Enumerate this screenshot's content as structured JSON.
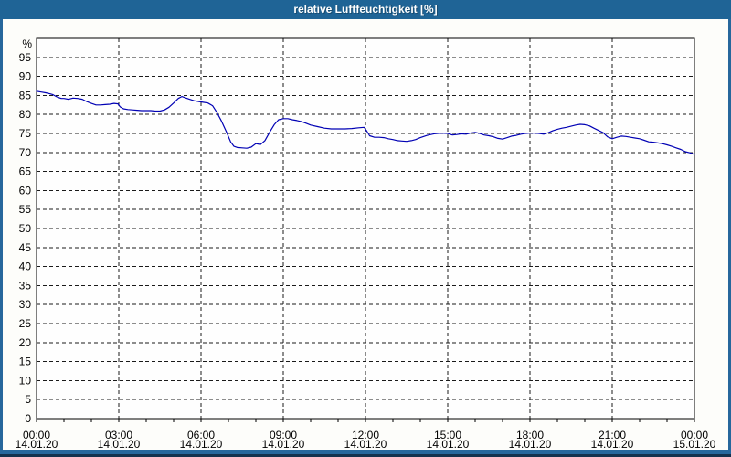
{
  "window": {
    "title": "relative Luftfeuchtigkeit [%]"
  },
  "colors": {
    "titlebar_bg": "#1f6496",
    "titlebar_text": "#ffffff",
    "frame": "#27679c",
    "frame_bottom_edge": "#14324e",
    "background": "#fdfdfa",
    "plot_background": "#fefefe",
    "grid": "#1a1a1a",
    "axis": "#000000",
    "series_line": "#0000b4",
    "tick_label": "#000000"
  },
  "chart_data": {
    "type": "line",
    "title": "relative Luftfeuchtigkeit [%]",
    "y_unit": "%",
    "legend": "none",
    "grid": "dashed",
    "x_axis": {
      "unit": "time",
      "range_hours": [
        0,
        24
      ],
      "minor_tick_every_hours": 1,
      "grid_hours": [
        3,
        6,
        9,
        12,
        15,
        18,
        21
      ],
      "ticks": [
        {
          "hour": 0,
          "time": "00:00",
          "date": "14.01.20"
        },
        {
          "hour": 3,
          "time": "03:00",
          "date": "14.01.20"
        },
        {
          "hour": 6,
          "time": "06:00",
          "date": "14.01.20"
        },
        {
          "hour": 9,
          "time": "09:00",
          "date": "14.01.20"
        },
        {
          "hour": 12,
          "time": "12:00",
          "date": "14.01.20"
        },
        {
          "hour": 15,
          "time": "15:00",
          "date": "14.01.20"
        },
        {
          "hour": 18,
          "time": "18:00",
          "date": "14.01.20"
        },
        {
          "hour": 21,
          "time": "21:00",
          "date": "14.01.20"
        },
        {
          "hour": 24,
          "time": "00:00",
          "date": "15.01.20"
        }
      ]
    },
    "y_axis": {
      "ticks": [
        0,
        5,
        10,
        15,
        20,
        25,
        30,
        35,
        40,
        45,
        50,
        55,
        60,
        65,
        70,
        75,
        80,
        85,
        90,
        95
      ],
      "box_max": 100,
      "ylim": [
        0,
        100
      ]
    },
    "series": [
      {
        "id": "humidity",
        "name": "relative Luftfeuchtigkeit",
        "color": "#0000b4",
        "points": [
          [
            0,
            86.1
          ],
          [
            0.17,
            85.9
          ],
          [
            0.33,
            85.7
          ],
          [
            0.5,
            85.4
          ],
          [
            0.6,
            85.2
          ],
          [
            0.75,
            84.6
          ],
          [
            0.9,
            84.2
          ],
          [
            1,
            84.2
          ],
          [
            1.17,
            84.0
          ],
          [
            1.33,
            84.3
          ],
          [
            1.5,
            84.2
          ],
          [
            1.67,
            84.0
          ],
          [
            1.83,
            83.4
          ],
          [
            2,
            82.9
          ],
          [
            2.17,
            82.5
          ],
          [
            2.33,
            82.5
          ],
          [
            2.5,
            82.6
          ],
          [
            2.67,
            82.7
          ],
          [
            2.83,
            82.9
          ],
          [
            2.97,
            82.8
          ],
          [
            3.05,
            82.0
          ],
          [
            3.17,
            81.5
          ],
          [
            3.33,
            81.3
          ],
          [
            3.5,
            81.2
          ],
          [
            3.67,
            81.1
          ],
          [
            3.83,
            81.0
          ],
          [
            4,
            81.0
          ],
          [
            4.17,
            81.0
          ],
          [
            4.33,
            80.9
          ],
          [
            4.5,
            80.9
          ],
          [
            4.67,
            81.2
          ],
          [
            4.83,
            81.9
          ],
          [
            5,
            83.0
          ],
          [
            5.17,
            84.2
          ],
          [
            5.3,
            84.7
          ],
          [
            5.42,
            84.4
          ],
          [
            5.58,
            84.0
          ],
          [
            5.75,
            83.6
          ],
          [
            5.92,
            83.4
          ],
          [
            6.08,
            83.2
          ],
          [
            6.25,
            83.0
          ],
          [
            6.42,
            82.3
          ],
          [
            6.58,
            80.5
          ],
          [
            6.75,
            78.2
          ],
          [
            6.92,
            75.5
          ],
          [
            7.08,
            72.8
          ],
          [
            7.2,
            71.6
          ],
          [
            7.33,
            71.3
          ],
          [
            7.5,
            71.2
          ],
          [
            7.67,
            71.1
          ],
          [
            7.83,
            71.4
          ],
          [
            8,
            72.3
          ],
          [
            8.08,
            72.2
          ],
          [
            8.17,
            72.1
          ],
          [
            8.33,
            73.1
          ],
          [
            8.5,
            75.3
          ],
          [
            8.67,
            77.3
          ],
          [
            8.83,
            78.6
          ],
          [
            9,
            78.9
          ],
          [
            9.17,
            78.9
          ],
          [
            9.33,
            78.6
          ],
          [
            9.5,
            78.4
          ],
          [
            9.67,
            78.1
          ],
          [
            9.83,
            77.7
          ],
          [
            10,
            77.2
          ],
          [
            10.25,
            76.8
          ],
          [
            10.5,
            76.4
          ],
          [
            10.75,
            76.2
          ],
          [
            11,
            76.2
          ],
          [
            11.25,
            76.2
          ],
          [
            11.5,
            76.3
          ],
          [
            11.75,
            76.5
          ],
          [
            11.95,
            76.6
          ],
          [
            12.05,
            75.6
          ],
          [
            12.15,
            74.4
          ],
          [
            12.33,
            74.0
          ],
          [
            12.5,
            74.0
          ],
          [
            12.67,
            73.9
          ],
          [
            12.83,
            73.6
          ],
          [
            13,
            73.4
          ],
          [
            13.17,
            73.1
          ],
          [
            13.33,
            73.0
          ],
          [
            13.5,
            72.9
          ],
          [
            13.67,
            73.1
          ],
          [
            13.83,
            73.4
          ],
          [
            14,
            73.9
          ],
          [
            14.25,
            74.5
          ],
          [
            14.5,
            74.9
          ],
          [
            14.75,
            75.1
          ],
          [
            15,
            75.0
          ],
          [
            15.17,
            74.6
          ],
          [
            15.33,
            74.7
          ],
          [
            15.5,
            74.9
          ],
          [
            15.67,
            74.8
          ],
          [
            15.83,
            75.1
          ],
          [
            16,
            75.3
          ],
          [
            16.17,
            75.0
          ],
          [
            16.33,
            74.6
          ],
          [
            16.5,
            74.4
          ],
          [
            16.67,
            74.1
          ],
          [
            16.83,
            73.7
          ],
          [
            17,
            73.5
          ],
          [
            17.17,
            73.9
          ],
          [
            17.33,
            74.3
          ],
          [
            17.5,
            74.5
          ],
          [
            17.67,
            74.8
          ],
          [
            17.83,
            75.0
          ],
          [
            18,
            75.1
          ],
          [
            18.17,
            75.1
          ],
          [
            18.33,
            75.0
          ],
          [
            18.5,
            74.8
          ],
          [
            18.67,
            75.2
          ],
          [
            18.83,
            75.7
          ],
          [
            19,
            76.1
          ],
          [
            19.17,
            76.4
          ],
          [
            19.33,
            76.6
          ],
          [
            19.5,
            76.9
          ],
          [
            19.67,
            77.2
          ],
          [
            19.83,
            77.4
          ],
          [
            20,
            77.3
          ],
          [
            20.17,
            77.0
          ],
          [
            20.33,
            76.4
          ],
          [
            20.5,
            75.8
          ],
          [
            20.67,
            75.2
          ],
          [
            20.83,
            74.1
          ],
          [
            21,
            73.6
          ],
          [
            21.17,
            74.0
          ],
          [
            21.33,
            74.3
          ],
          [
            21.5,
            74.2
          ],
          [
            21.67,
            74.0
          ],
          [
            21.83,
            73.8
          ],
          [
            22,
            73.6
          ],
          [
            22.17,
            73.2
          ],
          [
            22.33,
            72.8
          ],
          [
            22.5,
            72.7
          ],
          [
            22.67,
            72.5
          ],
          [
            22.83,
            72.3
          ],
          [
            23,
            72.0
          ],
          [
            23.17,
            71.6
          ],
          [
            23.33,
            71.2
          ],
          [
            23.5,
            70.8
          ],
          [
            23.67,
            70.2
          ],
          [
            23.83,
            69.9
          ],
          [
            24,
            69.5
          ]
        ]
      }
    ]
  }
}
